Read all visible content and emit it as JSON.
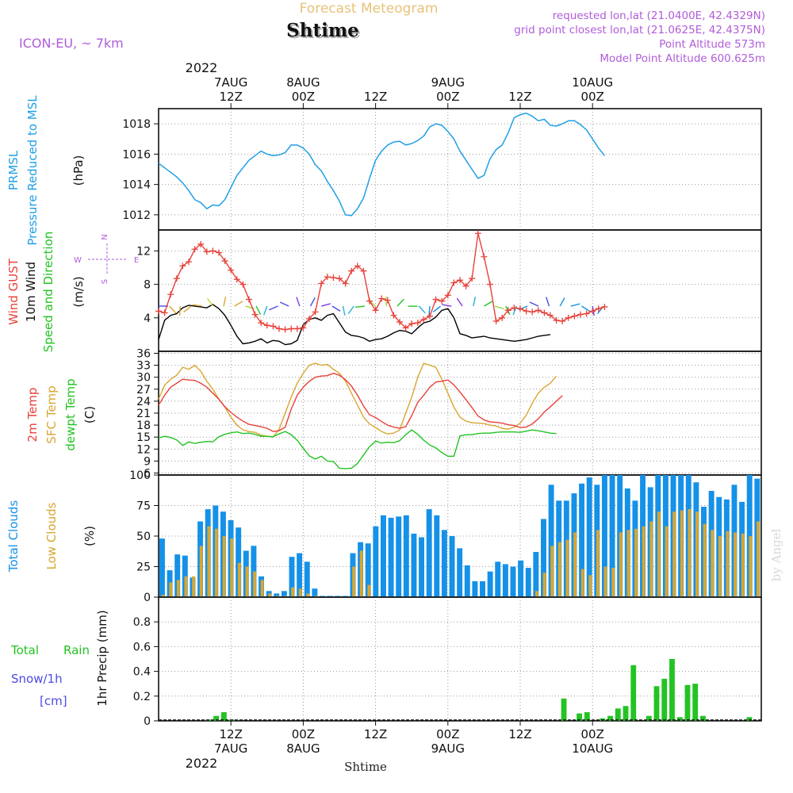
{
  "header": {
    "title": "Forecast Meteogram",
    "location": "Shtime",
    "model": "ICON-EU, ~ 7km",
    "requested": "requested lon,lat (21.0400E, 42.4329N)",
    "gridpoint": "grid point closest lon,lat (21.0625E, 42.4375N)",
    "point_alt": "Point Altitude 573m",
    "model_alt": "Model Point Altitude 600.625m",
    "footer": "Shtime",
    "watermark": "by Angel"
  },
  "colors": {
    "pressure": "#1f9fe6",
    "gust": "#e8413a",
    "wind": "#000000",
    "temp2m": "#e8413a",
    "sfc": "#d9a630",
    "dewpt": "#23c323",
    "total_cloud": "#1591e8",
    "low_cloud": "#d9a630",
    "rain": "#23c323",
    "snow": "#4a4ae6",
    "header_purple": "#b05cd9",
    "header_orange": "#e8c27a"
  },
  "top_axis": {
    "year": "2022",
    "ticks": [
      {
        "h": 12,
        "l1": "7AUG",
        "l2": "12Z"
      },
      {
        "h": 24,
        "l1": "8AUG",
        "l2": "00Z"
      },
      {
        "h": 36,
        "l1": "",
        "l2": "12Z"
      },
      {
        "h": 48,
        "l1": "9AUG",
        "l2": "00Z"
      },
      {
        "h": 60,
        "l1": "",
        "l2": "12Z"
      },
      {
        "h": 72,
        "l1": "10AUG",
        "l2": "00Z"
      }
    ]
  },
  "bottom_axis": {
    "year": "2022",
    "ticks": [
      {
        "h": 12,
        "l1": "12Z",
        "l2": "7AUG"
      },
      {
        "h": 24,
        "l1": "00Z",
        "l2": "8AUG"
      },
      {
        "h": 36,
        "l1": "12Z",
        "l2": ""
      },
      {
        "h": 48,
        "l1": "00Z",
        "l2": "9AUG"
      },
      {
        "h": 60,
        "l1": "12Z",
        "l2": ""
      },
      {
        "h": 72,
        "l1": "00Z",
        "l2": "10AUG"
      }
    ]
  },
  "chart_data": [
    {
      "type": "line",
      "id": "pressure",
      "ylabels": [
        "PRMSL",
        "Pressure Reduced to MSL",
        "(hPa)"
      ],
      "ylim": [
        1011.0,
        1019.0
      ],
      "yticks": [
        1012,
        1014,
        1016,
        1018
      ],
      "x_hours": [
        0,
        1,
        2,
        3,
        4,
        5,
        6,
        7,
        8,
        9,
        10,
        11,
        12,
        13,
        14,
        15,
        16,
        17,
        18,
        19,
        20,
        21,
        22,
        23,
        24,
        25,
        26,
        27,
        28,
        29,
        30,
        31,
        32,
        33,
        34,
        35,
        36,
        37,
        38,
        39,
        40,
        41,
        42,
        43,
        44,
        45,
        46,
        47,
        48,
        49,
        50,
        51,
        52,
        53,
        54,
        55,
        56,
        57,
        58,
        59,
        60,
        61,
        62,
        63,
        64,
        65,
        66,
        67,
        68,
        69,
        70,
        71,
        72,
        73,
        74,
        75,
        76,
        77,
        78,
        79,
        80,
        81,
        82,
        83,
        84,
        85,
        86,
        87,
        88,
        89,
        90,
        91,
        92,
        93,
        94,
        95,
        96,
        97
      ],
      "series": [
        {
          "name": "PRMSL",
          "values": [
            1015.4,
            1015.1,
            1014.8,
            1014.5,
            1014.1,
            1013.6,
            1013.0,
            1012.8,
            1012.4,
            1012.65,
            1012.6,
            1013.0,
            1013.8,
            1014.6,
            1015.1,
            1015.6,
            1015.9,
            1016.2,
            1016.0,
            1015.9,
            1015.95,
            1016.1,
            1016.6,
            1016.6,
            1016.4,
            1016.0,
            1015.3,
            1014.9,
            1014.2,
            1013.6,
            1012.9,
            1012.0,
            1011.95,
            1012.4,
            1013.1,
            1014.4,
            1015.6,
            1016.2,
            1016.6,
            1016.8,
            1016.85,
            1016.6,
            1016.7,
            1016.9,
            1017.2,
            1017.8,
            1018.0,
            1017.9,
            1017.5,
            1017.0,
            1016.2,
            1015.6,
            1015.0,
            1014.4,
            1014.6,
            1015.7,
            1016.3,
            1016.6,
            1017.4,
            1018.4,
            1018.6,
            1018.7,
            1018.5,
            1018.2,
            1018.3,
            1017.9,
            1017.85,
            1018.0,
            1018.2,
            1018.2,
            1017.95,
            1017.6,
            1017.0,
            1016.4,
            1015.9
          ]
        }
      ]
    },
    {
      "type": "line",
      "id": "wind",
      "ylabels": [
        "Wind GUST",
        "10m Wind",
        "Speed and Direction",
        "(m/s)"
      ],
      "compass": "N/S/W/E",
      "ylim": [
        0,
        14.5
      ],
      "yticks": [
        4,
        8,
        12
      ],
      "series": [
        {
          "name": "Wind GUST",
          "values": [
            4.8,
            4.6,
            6.8,
            8.7,
            10.2,
            10.7,
            12.2,
            12.8,
            11.9,
            12.0,
            11.8,
            10.8,
            9.7,
            8.6,
            8.0,
            6.2,
            4.4,
            3.4,
            3.1,
            3.0,
            2.7,
            2.6,
            2.7,
            2.7,
            2.8,
            3.9,
            4.7,
            8.1,
            8.9,
            8.8,
            8.7,
            8.1,
            9.6,
            10.2,
            9.6,
            6.0,
            4.9,
            6.3,
            6.1,
            4.3,
            3.5,
            2.8,
            3.3,
            3.4,
            3.8,
            4.2,
            6.2,
            6.0,
            6.7,
            8.2,
            8.5,
            7.8,
            8.7,
            14.1,
            11.3,
            8.0,
            3.6,
            4.0,
            4.9,
            5.2,
            5.1,
            4.8,
            4.7,
            4.9,
            4.6,
            4.3,
            3.7,
            3.6,
            4.0,
            4.2,
            4.4,
            4.5,
            4.8,
            5.1,
            5.3
          ]
        },
        {
          "name": "10m Wind",
          "values": [
            1.4,
            3.7,
            4.3,
            4.5,
            5.2,
            5.5,
            5.4,
            5.3,
            5.2,
            5.6,
            5.1,
            4.3,
            3.1,
            1.8,
            0.9,
            1.0,
            1.2,
            1.5,
            1.0,
            1.3,
            1.2,
            0.8,
            0.9,
            1.3,
            3.2,
            3.8,
            4.0,
            3.7,
            4.3,
            4.5,
            3.4,
            2.3,
            1.9,
            1.8,
            1.6,
            1.2,
            1.4,
            1.5,
            1.8,
            2.2,
            2.5,
            2.4,
            2.1,
            2.8,
            3.4,
            3.6,
            4.1,
            4.9,
            5.1,
            4.0,
            2.1,
            1.9,
            1.6,
            1.7,
            1.8,
            1.6,
            1.5,
            1.4,
            1.3,
            1.2,
            1.3,
            1.4,
            1.6,
            1.8,
            1.9,
            2.0
          ]
        }
      ],
      "arrows": {
        "tail_value": 5.4,
        "colors": [
          "#4a4ae6",
          "#d9a630",
          "#d9a630",
          "#d9a630",
          "#d9a630",
          "#c9d93a",
          "#d9a630",
          "#d9a630",
          "#9ad93a",
          "#23c323",
          "#2ab0d9",
          "#4a4ae6",
          "#4a4ae6",
          "#7c3ae6",
          "#4a4ae6",
          "#7c3ae6",
          "#4a4ae6",
          "#2ab0d9",
          "#2ab0d9",
          "#23c323",
          "#9ad93a",
          "#9ad93a",
          "#23c323",
          "#23c323",
          "#2ab0d9",
          "#1591e8",
          "#1591e8",
          "#7c3ae6",
          "#7c3ae6",
          "#2ab0d9",
          "#23c323",
          "#9ad93a",
          "#23c323",
          "#2ab0d9",
          "#1591e8",
          "#4a4ae6",
          "#4a4ae6",
          "#1591e8",
          "#1591e8",
          "#1591e8",
          "#4a4ae6",
          "#1591e8"
        ]
      }
    },
    {
      "type": "line",
      "id": "temperature",
      "ylabels": [
        "2m Temp",
        "SFC Temp",
        "dewpt Temp",
        "(C)"
      ],
      "ylim": [
        5.5,
        36.5
      ],
      "yticks": [
        6,
        9,
        12,
        15,
        18,
        21,
        24,
        27,
        30,
        33,
        36
      ],
      "series": [
        {
          "name": "2m Temp",
          "values": [
            23,
            25.5,
            27.5,
            28.5,
            29.5,
            29.3,
            29.2,
            28.5,
            27.5,
            26.0,
            24.5,
            22.6,
            21.2,
            20.0,
            19.0,
            18.2,
            17.9,
            17.6,
            17.2,
            16.4,
            16.6,
            17.5,
            22.0,
            25.5,
            27.5,
            29.0,
            30.0,
            30.3,
            30.4,
            31.0,
            30.5,
            29.4,
            27.8,
            25.5,
            22.8,
            20.6,
            19.9,
            18.9,
            18.0,
            17.5,
            17.2,
            17.6,
            20.4,
            23.7,
            25.5,
            27.5,
            28.8,
            29.0,
            29.3,
            28.1,
            26.3,
            24.4,
            22.4,
            20.3,
            19.3,
            18.8,
            18.7,
            18.5,
            18.1,
            17.9,
            17.4,
            17.5,
            18.3,
            19.6,
            21.3,
            22.6,
            24.0,
            25.4
          ]
        },
        {
          "name": "SFC Temp",
          "values": [
            24.5,
            28.0,
            29.5,
            30.5,
            32.5,
            32.0,
            33.0,
            31.5,
            29.0,
            27.0,
            24.5,
            22.5,
            20.0,
            18.0,
            16.8,
            16.4,
            16.2,
            15.5,
            15.2,
            15.0,
            17.0,
            21.0,
            25.0,
            28.5,
            31.0,
            33.0,
            33.5,
            33.0,
            33.2,
            32.0,
            31.0,
            29.0,
            26.0,
            23.0,
            20.0,
            18.3,
            17.4,
            16.4,
            15.8,
            16.0,
            16.8,
            21.0,
            25.0,
            30.0,
            33.5,
            33.0,
            32.5,
            29.5,
            26.0,
            22.5,
            20.0,
            19.0,
            18.6,
            18.5,
            18.4,
            18.0,
            17.8,
            17.2,
            17.0,
            17.5,
            18.5,
            20.5,
            23.5,
            26.0,
            27.5,
            28.5,
            30.3
          ]
        },
        {
          "name": "dewpt Temp",
          "values": [
            14.8,
            15.2,
            14.9,
            14.3,
            12.9,
            13.8,
            13.4,
            13.7,
            13.9,
            13.8,
            15.1,
            15.7,
            16.1,
            16.3,
            15.9,
            16.0,
            15.7,
            15.2,
            15.2,
            15.1,
            15.8,
            16.4,
            15.6,
            14.2,
            12.2,
            10.3,
            9.5,
            10.2,
            9.0,
            8.9,
            7.2,
            7.1,
            7.2,
            8.4,
            10.5,
            12.6,
            14.0,
            13.5,
            13.7,
            13.6,
            14.1,
            15.6,
            16.8,
            15.7,
            14.2,
            13.0,
            12.3,
            11.1,
            10.2,
            10.2,
            15.3,
            15.6,
            15.6,
            15.9,
            16.0,
            16.0,
            16.2,
            16.3,
            16.3,
            16.3,
            16.2,
            16.5,
            16.8,
            16.6,
            16.3,
            16.0,
            15.9
          ]
        }
      ]
    },
    {
      "type": "bar",
      "id": "clouds",
      "ylabels": [
        "Total Clouds",
        "Low Clouds",
        "(%)"
      ],
      "ylim": [
        0,
        100
      ],
      "yticks": [
        0,
        25,
        50,
        75,
        100
      ],
      "series": [
        {
          "name": "Total Clouds",
          "values": [
            48,
            22,
            35,
            34,
            16,
            62,
            72,
            75,
            70,
            63,
            57,
            38,
            42,
            17,
            5,
            3,
            5,
            33,
            36,
            29,
            7,
            1,
            1,
            1,
            1,
            36,
            45,
            44,
            58,
            67,
            65,
            66,
            67,
            52,
            49,
            72,
            67,
            55,
            50,
            40,
            26,
            13,
            13,
            21,
            29,
            27,
            25,
            30,
            24,
            37,
            64,
            92,
            79,
            79,
            85,
            93,
            98,
            92,
            100,
            100,
            100,
            89,
            79,
            100,
            90,
            100,
            100,
            100,
            100,
            100,
            94,
            74,
            87,
            82,
            80,
            92,
            78,
            100,
            97
          ]
        },
        {
          "name": "Low Clouds",
          "values": [
            2,
            12,
            14,
            17,
            17,
            42,
            58,
            56,
            50,
            48,
            28,
            25,
            21,
            14,
            3,
            1,
            1,
            8,
            7,
            3,
            1,
            0,
            0,
            0,
            0,
            25,
            38,
            10,
            0,
            0,
            0,
            0,
            0,
            0,
            0,
            0,
            0,
            0,
            0,
            0,
            0,
            0,
            0,
            0,
            0,
            0,
            0,
            0,
            0,
            5,
            20,
            42,
            45,
            47,
            53,
            23,
            18,
            55,
            25,
            24,
            53,
            55,
            56,
            58,
            62,
            70,
            58,
            70,
            71,
            72,
            70,
            60,
            55,
            50,
            54,
            53,
            52,
            50,
            62
          ]
        }
      ]
    },
    {
      "type": "bar",
      "id": "precip",
      "ylabels": [
        "Total",
        "Rain",
        "Snow/1h",
        "[cm]",
        "1hr Precip (mm)"
      ],
      "ylim": [
        0,
        1.0
      ],
      "yticks": [
        0,
        0.2,
        0.4,
        0.6,
        0.8
      ],
      "series": [
        {
          "name": "Total Rain",
          "values": [
            0,
            0,
            0,
            0,
            0,
            0,
            0.01,
            0.04,
            0.07,
            0.01,
            0,
            0,
            0,
            0,
            0,
            0,
            0,
            0,
            0,
            0,
            0,
            0,
            0,
            0,
            0,
            0,
            0,
            0,
            0,
            0,
            0,
            0,
            0,
            0,
            0,
            0,
            0,
            0,
            0,
            0,
            0,
            0,
            0,
            0,
            0,
            0,
            0,
            0,
            0,
            0,
            0,
            0,
            0.18,
            0,
            0.06,
            0.07,
            0,
            0.02,
            0.04,
            0.1,
            0.12,
            0.45,
            0,
            0.04,
            0.28,
            0.34,
            0.5,
            0.03,
            0.29,
            0.3,
            0.04,
            0,
            0,
            0,
            0,
            0,
            0.03,
            0
          ]
        }
      ]
    }
  ]
}
